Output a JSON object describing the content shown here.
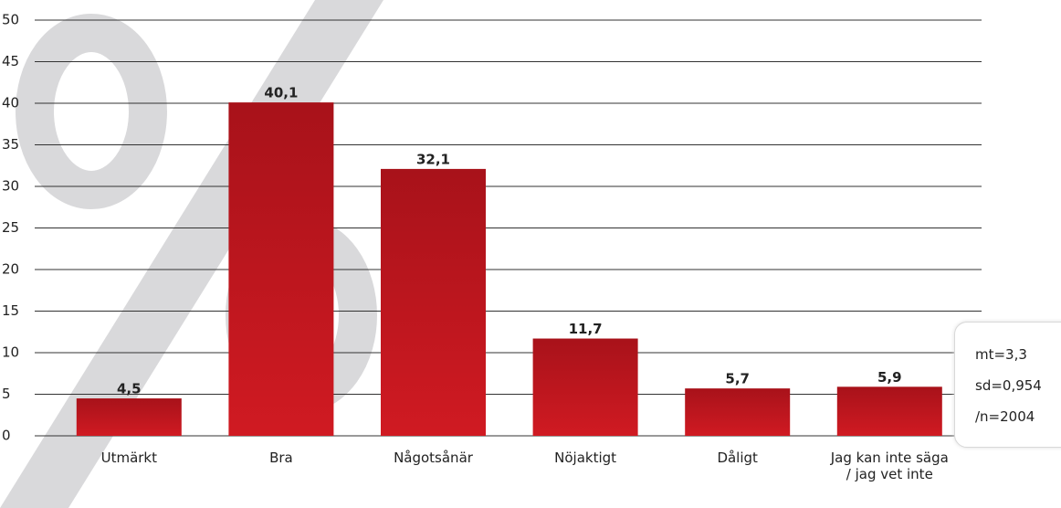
{
  "chart_data": {
    "type": "bar",
    "categories": [
      "Utmärkt",
      "Bra",
      "Någotsånär",
      "Nöjaktigt",
      "Dåligt",
      "Jag kan inte säga / jag vet inte"
    ],
    "values": [
      4.5,
      40.1,
      32.1,
      11.7,
      5.7,
      5.9
    ],
    "value_labels": [
      "4,5",
      "40,1",
      "32,1",
      "11,7",
      "5,7",
      "5,9"
    ],
    "color": "#c8161d",
    "ylim": [
      0,
      50
    ],
    "yticks": [
      0,
      5,
      10,
      15,
      20,
      25,
      30,
      35,
      40,
      45,
      50
    ],
    "grid": true,
    "annotations": [
      "mt=3,3",
      "sd=0,954",
      "/n=2004"
    ]
  }
}
